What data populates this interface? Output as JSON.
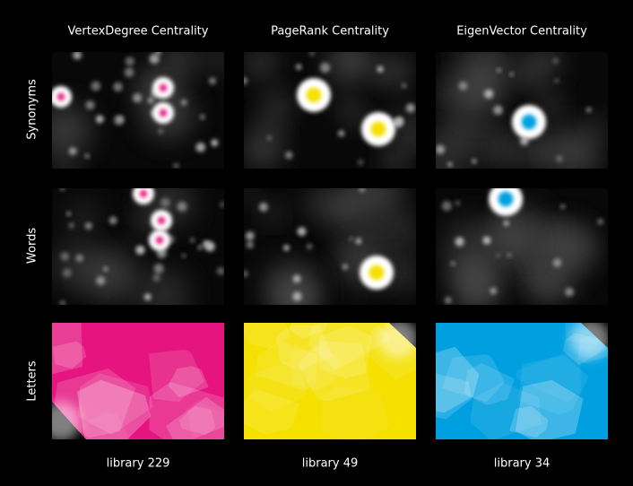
{
  "columns": [
    {
      "title": "VertexDegree Centrality",
      "footer": "library 229"
    },
    {
      "title": "PageRank Centrality",
      "footer": "library 49"
    },
    {
      "title": "EigenVector Centrality",
      "footer": "library 34"
    }
  ],
  "rows": [
    {
      "label": "Synonyms"
    },
    {
      "label": "Words"
    },
    {
      "label": "Letters"
    }
  ]
}
